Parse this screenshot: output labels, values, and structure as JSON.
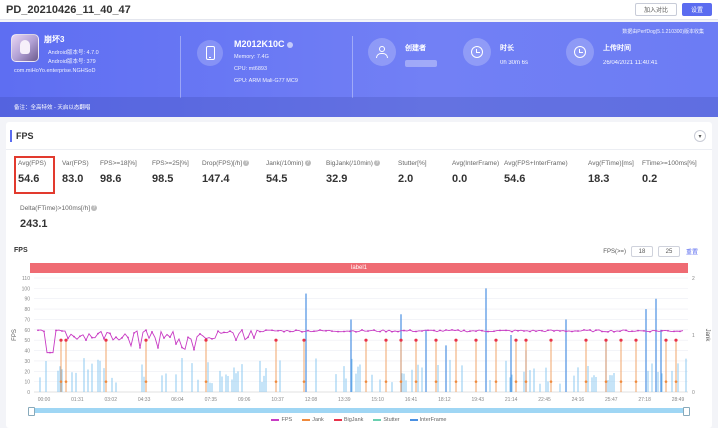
{
  "topbar": {
    "title": "PD_20210426_11_40_47",
    "btn_compare": "加入对比",
    "btn_settings": "设置"
  },
  "banner": {
    "notice": "数据由PerfDog(5.1.210300)版本收集",
    "app": {
      "name": "崩坏3",
      "line1": "Android版本号: 4.7.0",
      "line2": "Android版本号: 379",
      "package": "com.miHoYo.enterprise.NGHSoD"
    },
    "device": {
      "name": "M2012K10C",
      "memory": "Memory: 7.4G",
      "cpu": "CPU: mt6893",
      "gpu": "GPU: ARM Mali-G77 MC9"
    },
    "creator_label": "创建者",
    "duration_label": "时长",
    "duration_value": "0h 30m 6s",
    "upload_label": "上传时间",
    "upload_value": "26/04/2021 11:40:41",
    "remark": "备注：全高特效 - 天启以态翻唱"
  },
  "section": {
    "title": "FPS"
  },
  "metrics": [
    {
      "label": "Avg(FPS)",
      "value": "54.6"
    },
    {
      "label": "Var(FPS)",
      "value": "83.0"
    },
    {
      "label": "FPS>=18[%]",
      "value": "98.6"
    },
    {
      "label": "FPS>=25[%]",
      "value": "98.5"
    },
    {
      "label": "Drop(FPS)[/h]",
      "value": "147.4"
    },
    {
      "label": "Jank(/10min)",
      "value": "54.5"
    },
    {
      "label": "BigJank(/10min)",
      "value": "32.9"
    },
    {
      "label": "Stutter[%]",
      "value": "2.0"
    },
    {
      "label": "Avg(InterFrame)",
      "value": "0.0"
    },
    {
      "label": "Avg(FPS+InterFrame)",
      "value": "54.6"
    },
    {
      "label": "Avg(FTime)[ms]",
      "value": "18.3"
    },
    {
      "label": "FTime>=100ms[%]",
      "value": "0.2"
    },
    {
      "label": "Delta(FTime)>100ms[/h]",
      "value": "243.1"
    }
  ],
  "chart_header": {
    "title": "FPS",
    "fps_filter_label": "FPS(>=)",
    "fps_filter_a": "18",
    "fps_filter_b": "25",
    "reset": "重置",
    "label_bar": "label1"
  },
  "chart_data": {
    "type": "line",
    "title": "",
    "ylabel": "FPS",
    "y2label": "Jank",
    "ylim": [
      0,
      110
    ],
    "y_ticks": [
      0,
      10,
      20,
      30,
      40,
      50,
      60,
      70,
      80,
      90,
      100,
      110
    ],
    "y2_ticks": [
      0,
      1,
      2
    ],
    "x_ticks": [
      "00:00",
      "01:31",
      "03:02",
      "04:33",
      "06:04",
      "07:35",
      "09:06",
      "10:37",
      "12:08",
      "13:39",
      "15:10",
      "16:41",
      "18:12",
      "19:43",
      "21:14",
      "22:45",
      "24:16",
      "25:47",
      "27:18",
      "28:49"
    ],
    "series": [
      {
        "name": "FPS",
        "color": "#c83cc4",
        "summary": {
          "typical": 59,
          "early_segment_range": [
            40,
            60
          ],
          "min": 38
        }
      },
      {
        "name": "Jank",
        "color": "#f08a3c"
      },
      {
        "name": "BigJank",
        "color": "#e8334a"
      },
      {
        "name": "Stutter",
        "color": "#6ad0b0"
      },
      {
        "name": "InterFrame",
        "color": "#4a90e2"
      }
    ]
  }
}
